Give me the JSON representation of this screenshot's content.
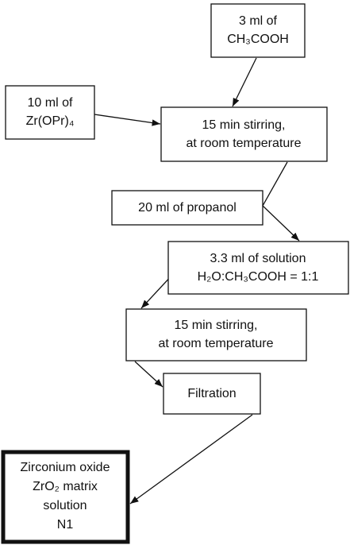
{
  "nodes": [
    {
      "lines": [
        "3 ml of",
        "CH₃COOH"
      ]
    },
    {
      "lines": [
        "10 ml of",
        "Zr(OPr)₄"
      ]
    },
    {
      "lines": [
        "15 min stirring,",
        "at room temperature"
      ]
    },
    {
      "lines": [
        "20 ml of propanol"
      ]
    },
    {
      "lines": [
        "3.3 ml  of solution",
        "H₂O:CH₃COOH = 1:1"
      ]
    },
    {
      "lines": [
        "15 min stirring,",
        "at room temperature"
      ]
    },
    {
      "lines": [
        "Filtration"
      ]
    },
    {
      "lines": [
        "Zirconium oxide",
        "ZrO₂ matrix",
        "solution",
        "N1"
      ]
    }
  ]
}
